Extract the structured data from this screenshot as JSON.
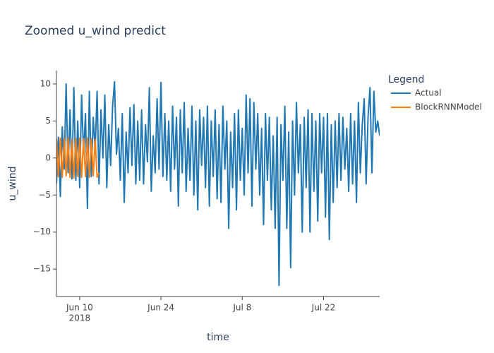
{
  "chart_data": {
    "type": "line",
    "title": "Zoomed u_wind predict",
    "x_label": "time",
    "y_label": "u_wind",
    "legend_title": "Legend",
    "legend_position": "right",
    "grid": false,
    "x": [
      "2018-06-06 00:00",
      "2018-06-06 08:00",
      "2018-06-06 16:00",
      "2018-06-07 00:00",
      "2018-06-07 08:00",
      "2018-06-07 16:00",
      "2018-06-08 00:00",
      "2018-06-08 08:00",
      "2018-06-08 16:00",
      "2018-06-09 00:00",
      "2018-06-09 08:00",
      "2018-06-09 16:00",
      "2018-06-10 00:00",
      "2018-06-10 08:00",
      "2018-06-10 16:00",
      "2018-06-11 00:00",
      "2018-06-11 08:00",
      "2018-06-11 16:00",
      "2018-06-12 00:00",
      "2018-06-12 08:00",
      "2018-06-12 16:00",
      "2018-06-13 00:00",
      "2018-06-13 08:00",
      "2018-06-13 16:00",
      "2018-06-14 00:00",
      "2018-06-14 08:00",
      "2018-06-14 16:00",
      "2018-06-15 00:00",
      "2018-06-15 08:00",
      "2018-06-15 16:00",
      "2018-06-16 00:00",
      "2018-06-16 08:00",
      "2018-06-16 16:00",
      "2018-06-17 00:00",
      "2018-06-17 08:00",
      "2018-06-17 16:00",
      "2018-06-18 00:00",
      "2018-06-18 08:00",
      "2018-06-18 16:00",
      "2018-06-19 00:00",
      "2018-06-19 08:00",
      "2018-06-19 16:00",
      "2018-06-20 00:00",
      "2018-06-20 08:00",
      "2018-06-20 16:00",
      "2018-06-21 00:00",
      "2018-06-21 08:00",
      "2018-06-21 16:00",
      "2018-06-22 00:00",
      "2018-06-22 08:00",
      "2018-06-22 16:00",
      "2018-06-23 00:00",
      "2018-06-23 08:00",
      "2018-06-23 16:00",
      "2018-06-24 00:00",
      "2018-06-24 08:00",
      "2018-06-24 16:00",
      "2018-06-25 00:00",
      "2018-06-25 08:00",
      "2018-06-25 16:00",
      "2018-06-26 00:00",
      "2018-06-26 08:00",
      "2018-06-26 16:00",
      "2018-06-27 00:00",
      "2018-06-27 08:00",
      "2018-06-27 16:00",
      "2018-06-28 00:00",
      "2018-06-28 08:00",
      "2018-06-28 16:00",
      "2018-06-29 00:00",
      "2018-06-29 08:00",
      "2018-06-29 16:00",
      "2018-06-30 00:00",
      "2018-06-30 08:00",
      "2018-06-30 16:00",
      "2018-07-01 00:00",
      "2018-07-01 08:00",
      "2018-07-01 16:00",
      "2018-07-02 00:00",
      "2018-07-02 08:00",
      "2018-07-02 16:00",
      "2018-07-03 00:00",
      "2018-07-03 08:00",
      "2018-07-03 16:00",
      "2018-07-04 00:00",
      "2018-07-04 08:00",
      "2018-07-04 16:00",
      "2018-07-05 00:00",
      "2018-07-05 08:00",
      "2018-07-05 16:00",
      "2018-07-06 00:00",
      "2018-07-06 08:00",
      "2018-07-06 16:00",
      "2018-07-07 00:00",
      "2018-07-07 08:00",
      "2018-07-07 16:00",
      "2018-07-08 00:00",
      "2018-07-08 08:00",
      "2018-07-08 16:00",
      "2018-07-09 00:00",
      "2018-07-09 08:00",
      "2018-07-09 16:00",
      "2018-07-10 00:00",
      "2018-07-10 08:00",
      "2018-07-10 16:00",
      "2018-07-11 00:00",
      "2018-07-11 08:00",
      "2018-07-11 16:00",
      "2018-07-12 00:00",
      "2018-07-12 08:00",
      "2018-07-12 16:00",
      "2018-07-13 00:00",
      "2018-07-13 08:00",
      "2018-07-13 16:00",
      "2018-07-14 00:00",
      "2018-07-14 08:00",
      "2018-07-14 16:00",
      "2018-07-15 00:00",
      "2018-07-15 08:00",
      "2018-07-15 16:00",
      "2018-07-16 00:00",
      "2018-07-16 08:00",
      "2018-07-16 16:00",
      "2018-07-17 00:00",
      "2018-07-17 08:00",
      "2018-07-17 16:00",
      "2018-07-18 00:00",
      "2018-07-18 08:00",
      "2018-07-18 16:00",
      "2018-07-19 00:00",
      "2018-07-19 08:00",
      "2018-07-19 16:00",
      "2018-07-20 00:00",
      "2018-07-20 08:00",
      "2018-07-20 16:00",
      "2018-07-21 00:00",
      "2018-07-21 08:00",
      "2018-07-21 16:00",
      "2018-07-22 00:00",
      "2018-07-22 08:00",
      "2018-07-22 16:00",
      "2018-07-23 00:00",
      "2018-07-23 08:00",
      "2018-07-23 16:00",
      "2018-07-24 00:00",
      "2018-07-24 08:00",
      "2018-07-24 16:00",
      "2018-07-25 00:00",
      "2018-07-25 08:00",
      "2018-07-25 16:00",
      "2018-07-26 00:00",
      "2018-07-26 08:00",
      "2018-07-26 16:00",
      "2018-07-27 00:00",
      "2018-07-27 08:00",
      "2018-07-27 16:00",
      "2018-07-28 00:00",
      "2018-07-28 08:00",
      "2018-07-28 16:00",
      "2018-07-29 00:00",
      "2018-07-29 08:00",
      "2018-07-29 16:00",
      "2018-07-30 00:00",
      "2018-07-30 08:00",
      "2018-07-30 16:00",
      "2018-07-31 00:00",
      "2018-07-31 08:00",
      "2018-07-31 16:00"
    ],
    "series": [
      {
        "name": "Actual",
        "color": "#1f77b4",
        "values": [
          -3.5,
          2.8,
          -5.2,
          4.2,
          -1.5,
          10.0,
          -2.0,
          6.5,
          -2.8,
          9.5,
          -3.0,
          5.0,
          -4.0,
          8.5,
          0.5,
          6.0,
          -6.8,
          9.0,
          -2.5,
          5.5,
          1.0,
          9.0,
          -3.5,
          6.5,
          0.0,
          8.5,
          -4.0,
          4.5,
          -1.0,
          7.0,
          10.3,
          0.5,
          4.0,
          -3.0,
          6.0,
          -6.0,
          3.5,
          -2.0,
          6.8,
          -1.0,
          7.2,
          -3.5,
          5.0,
          -3.0,
          6.5,
          -3.5,
          4.5,
          -0.5,
          9.5,
          -4.5,
          3.0,
          -2.0,
          8.0,
          -1.5,
          10.2,
          -2.5,
          6.0,
          -3.0,
          5.0,
          -4.5,
          7.0,
          -1.5,
          5.5,
          -6.5,
          6.5,
          -2.0,
          7.5,
          -4.5,
          4.0,
          -3.0,
          7.0,
          -5.0,
          5.0,
          -7.0,
          6.5,
          -1.0,
          5.5,
          -4.0,
          7.0,
          -6.5,
          5.0,
          -2.5,
          6.5,
          -5.5,
          4.5,
          -6.0,
          7.0,
          -1.5,
          5.0,
          -9.5,
          3.5,
          -4.0,
          6.0,
          -7.0,
          6.5,
          -3.0,
          4.0,
          -5.0,
          8.5,
          -2.0,
          8.0,
          -6.5,
          7.5,
          -1.5,
          6.0,
          -5.0,
          4.0,
          -9.0,
          6.0,
          -3.0,
          5.5,
          -7.0,
          3.0,
          -9.5,
          5.5,
          -17.2,
          4.5,
          -3.0,
          7.0,
          -9.5,
          3.5,
          -14.8,
          5.0,
          -5.0,
          7.5,
          -2.0,
          4.5,
          -10.0,
          5.5,
          -4.0,
          6.5,
          -10.0,
          6.0,
          -4.5,
          5.0,
          -8.5,
          6.0,
          -2.0,
          5.5,
          -8.0,
          6.0,
          -11.0,
          4.5,
          -6.0,
          5.0,
          -4.0,
          6.0,
          -3.0,
          5.5,
          -1.5,
          4.0,
          -4.5,
          6.0,
          -3.5,
          5.0,
          -6.0,
          7.5,
          -2.0,
          4.5,
          8.0,
          -3.5,
          5.5,
          9.5,
          -2.0,
          9.0,
          3.5,
          5.0,
          3.0
        ]
      },
      {
        "name": "BlockRNNModel",
        "color": "#ff7f0e",
        "values": [
          2.6,
          -2.5,
          2.7,
          -2.6,
          2.6,
          -2.4,
          2.7,
          -2.6,
          2.5,
          -2.7,
          2.6,
          -2.5,
          2.7,
          -2.6,
          2.6,
          -2.5,
          2.7,
          -2.6,
          2.6,
          -2.4,
          2.5,
          -2.6,
          -2.0,
          null,
          null,
          null,
          null,
          null,
          null,
          null,
          null,
          null,
          null,
          null,
          null,
          null,
          null,
          null,
          null,
          null,
          null,
          null,
          null,
          null,
          null,
          null,
          null,
          null,
          null,
          null,
          null,
          null,
          null,
          null,
          null,
          null,
          null,
          null,
          null,
          null,
          null,
          null,
          null,
          null,
          null,
          null,
          null,
          null,
          null,
          null,
          null,
          null,
          null,
          null,
          null,
          null,
          null,
          null,
          null,
          null,
          null,
          null,
          null,
          null,
          null,
          null,
          null,
          null,
          null,
          null,
          null,
          null,
          null,
          null,
          null,
          null,
          null,
          null,
          null,
          null,
          null,
          null,
          null,
          null,
          null,
          null,
          null,
          null,
          null,
          null,
          null,
          null,
          null,
          null,
          null,
          null,
          null,
          null,
          null,
          null,
          null,
          null,
          null,
          null,
          null,
          null,
          null,
          null,
          null,
          null,
          null,
          null,
          null,
          null,
          null,
          null,
          null,
          null,
          null,
          null,
          null,
          null,
          null,
          null,
          null,
          null,
          null,
          null,
          null,
          null,
          null,
          null,
          null,
          null,
          null,
          null,
          null,
          null,
          null,
          null,
          null,
          null,
          null,
          null,
          null,
          null,
          null,
          null
        ]
      }
    ],
    "xlim": [
      "2018-06-06 00:00",
      "2018-07-31 16:00"
    ],
    "xticks": [
      {
        "value": "2018-06-10 00:00",
        "label": "Jun 10"
      },
      {
        "value": "2018-06-24 00:00",
        "label": "Jun 24"
      },
      {
        "value": "2018-07-08 00:00",
        "label": "Jul 8"
      },
      {
        "value": "2018-07-22 00:00",
        "label": "Jul 22"
      }
    ],
    "x_tick_year": "2018",
    "ylim": [
      -18.7,
      11.8
    ],
    "yticks": [
      {
        "value": -15,
        "label": "−15"
      },
      {
        "value": -10,
        "label": "−10"
      },
      {
        "value": -5,
        "label": "−5"
      },
      0,
      5,
      10
    ]
  }
}
